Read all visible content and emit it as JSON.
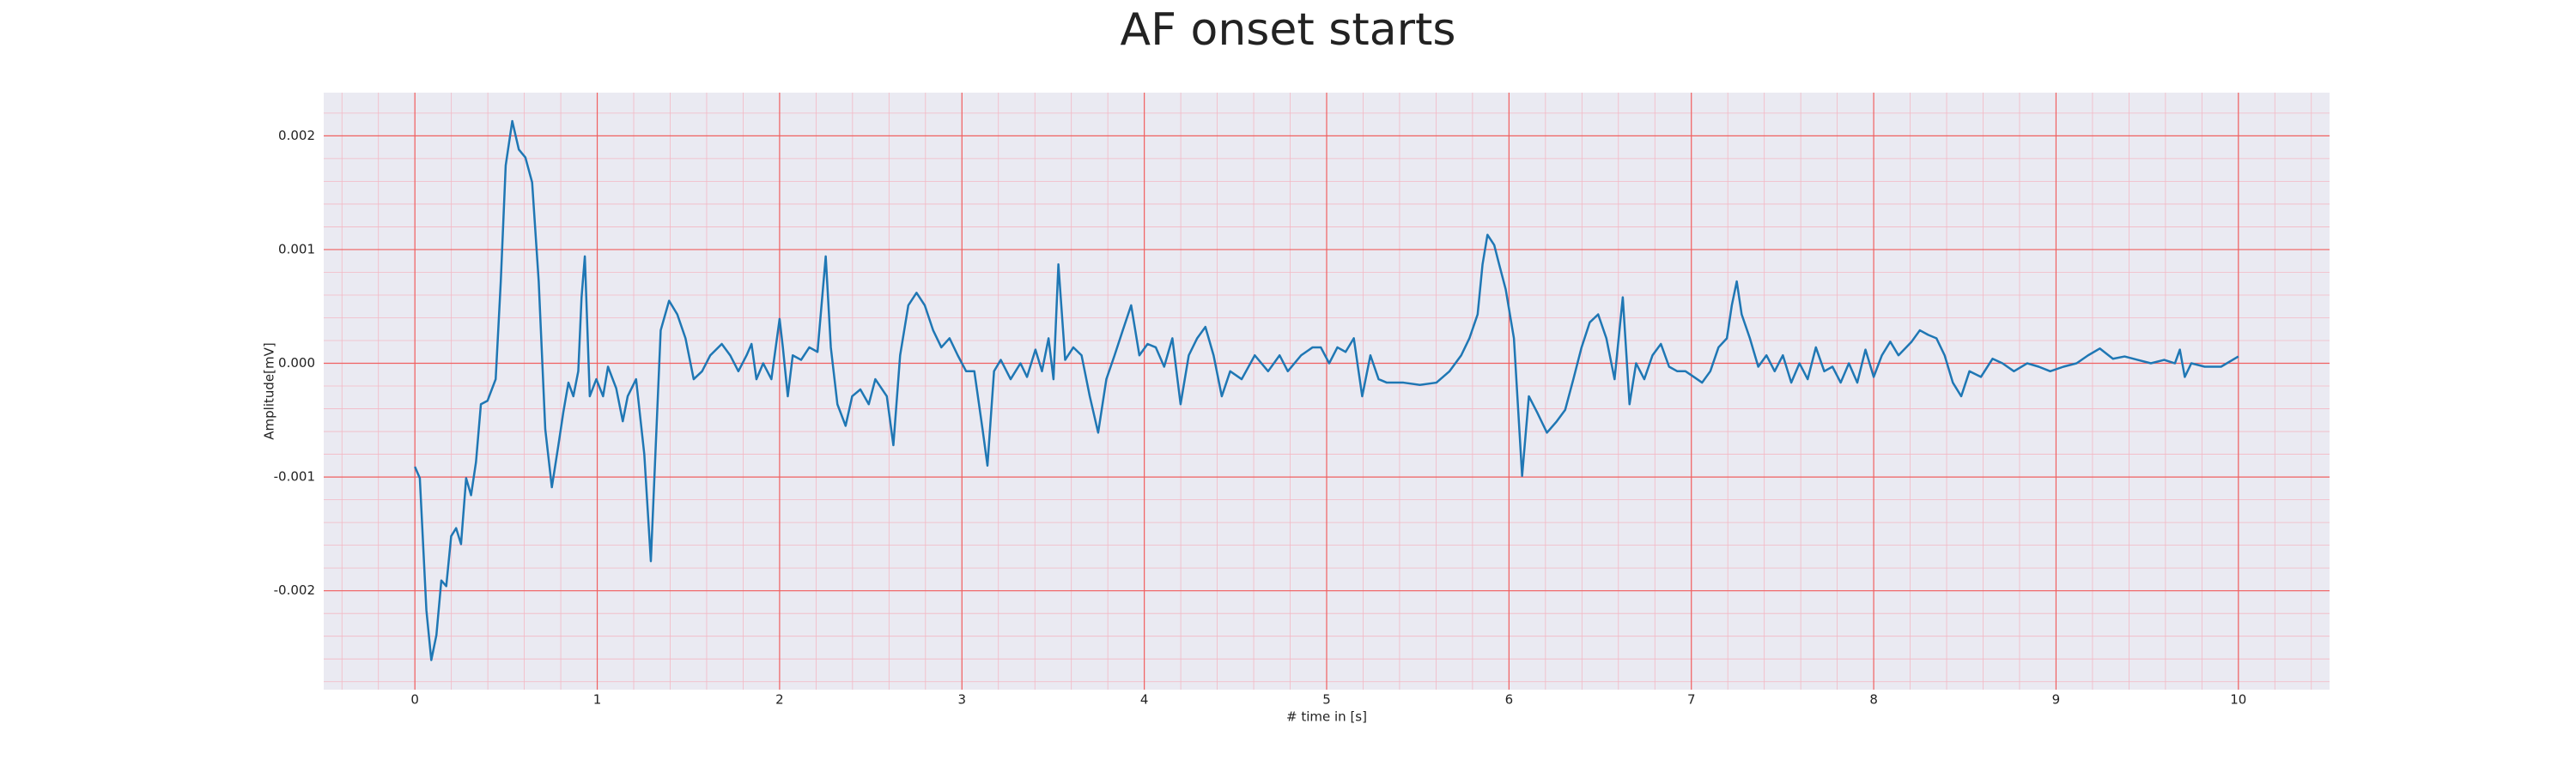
{
  "chart_data": {
    "type": "line",
    "title": "AF onset starts",
    "xlabel": "# time in [s]",
    "ylabel": "Amplitude[mV]",
    "x": [
      0,
      0.027,
      0.045,
      0.063,
      0.09,
      0.118,
      0.145,
      0.172,
      0.199,
      0.226,
      0.253,
      0.281,
      0.308,
      0.335,
      0.362,
      0.398,
      0.443,
      0.471,
      0.498,
      0.534,
      0.57,
      0.606,
      0.643,
      0.679,
      0.715,
      0.751,
      0.787,
      0.814,
      0.842,
      0.869,
      0.896,
      0.914,
      0.932,
      0.959,
      0.995,
      1.032,
      1.059,
      1.104,
      1.14,
      1.167,
      1.213,
      1.258,
      1.294,
      1.321,
      1.348,
      1.394,
      1.439,
      1.484,
      1.529,
      1.575,
      1.62,
      1.683,
      1.729,
      1.774,
      1.819,
      1.846,
      1.873,
      1.91,
      1.955,
      2.0,
      2.018,
      2.045,
      2.072,
      2.118,
      2.163,
      2.208,
      2.253,
      2.281,
      2.317,
      2.362,
      2.398,
      2.443,
      2.489,
      2.525,
      2.588,
      2.624,
      2.661,
      2.706,
      2.751,
      2.796,
      2.842,
      2.887,
      2.932,
      2.977,
      3.023,
      3.068,
      3.113,
      3.14,
      3.176,
      3.213,
      3.267,
      3.321,
      3.357,
      3.403,
      3.439,
      3.475,
      3.502,
      3.529,
      3.566,
      3.611,
      3.656,
      3.701,
      3.747,
      3.792,
      3.837,
      3.882,
      3.928,
      3.973,
      4.018,
      4.063,
      4.109,
      4.154,
      4.199,
      4.244,
      4.29,
      4.335,
      4.38,
      4.425,
      4.471,
      4.534,
      4.606,
      4.679,
      4.742,
      4.787,
      4.86,
      4.923,
      4.968,
      5.014,
      5.059,
      5.104,
      5.149,
      5.195,
      5.24,
      5.285,
      5.33,
      5.421,
      5.511,
      5.602,
      5.674,
      5.738,
      5.783,
      5.828,
      5.855,
      5.882,
      5.919,
      5.946,
      5.982,
      6.027,
      6.072,
      6.109,
      6.154,
      6.208,
      6.262,
      6.308,
      6.353,
      6.398,
      6.443,
      6.489,
      6.534,
      6.579,
      6.624,
      6.661,
      6.697,
      6.742,
      6.787,
      6.833,
      6.878,
      6.923,
      6.968,
      7.014,
      7.059,
      7.104,
      7.149,
      7.195,
      7.222,
      7.249,
      7.276,
      7.321,
      7.367,
      7.412,
      7.457,
      7.502,
      7.548,
      7.593,
      7.638,
      7.683,
      7.729,
      7.774,
      7.819,
      7.864,
      7.91,
      7.955,
      8.0,
      8.045,
      8.091,
      8.136,
      8.208,
      8.253,
      8.299,
      8.344,
      8.389,
      8.434,
      8.48,
      8.525,
      8.588,
      8.652,
      8.706,
      8.769,
      8.842,
      8.905,
      8.968,
      9.041,
      9.113,
      9.176,
      9.24,
      9.312,
      9.376,
      9.448,
      9.52,
      9.593,
      9.652,
      9.679,
      9.706,
      9.742,
      9.815,
      9.905,
      10.0
    ],
    "values": [
      -0.00091,
      -0.00101,
      -0.00159,
      -0.00217,
      -0.00261,
      -0.00239,
      -0.00191,
      -0.00196,
      -0.00152,
      -0.00145,
      -0.00159,
      -0.00101,
      -0.00116,
      -0.00087,
      -0.00036,
      -0.00033,
      -0.00014,
      0.00072,
      0.00174,
      0.00213,
      0.00188,
      0.00181,
      0.00159,
      0.00072,
      -0.00058,
      -0.00109,
      -0.00072,
      -0.00043,
      -0.00017,
      -0.00029,
      -7e-05,
      0.00058,
      0.00094,
      -0.00029,
      -0.00014,
      -0.00029,
      -3e-05,
      -0.00022,
      -0.00051,
      -0.00029,
      -0.00014,
      -0.0008,
      -0.00174,
      -0.00072,
      0.00029,
      0.00055,
      0.00043,
      0.00022,
      -0.00014,
      -7e-05,
      7e-05,
      0.00017,
      7e-05,
      -7e-05,
      7e-05,
      0.00017,
      -0.00014,
      0,
      -0.00014,
      0.00039,
      0.00014,
      -0.00029,
      7e-05,
      3e-05,
      0.00014,
      0.0001,
      0.00094,
      0.00014,
      -0.00036,
      -0.00055,
      -0.00029,
      -0.00023,
      -0.00036,
      -0.00014,
      -0.00029,
      -0.00072,
      7e-05,
      0.00051,
      0.00062,
      0.00051,
      0.00029,
      0.00014,
      0.00022,
      7e-05,
      -7e-05,
      -7e-05,
      -0.00058,
      -0.0009,
      -7e-05,
      3e-05,
      -0.00014,
      0,
      -0.00012,
      0.00012,
      -7e-05,
      0.00022,
      -0.00014,
      0.00087,
      3e-05,
      0.00014,
      7e-05,
      -0.00029,
      -0.00061,
      -0.00014,
      7e-05,
      0.00029,
      0.00051,
      7e-05,
      0.00017,
      0.00014,
      -3e-05,
      0.00022,
      -0.00036,
      7e-05,
      0.00022,
      0.00032,
      7e-05,
      -0.00029,
      -7e-05,
      -0.00014,
      7e-05,
      -7e-05,
      7e-05,
      -7e-05,
      7e-05,
      0.00014,
      0.00014,
      0,
      0.00014,
      0.0001,
      0.00022,
      -0.00029,
      7e-05,
      -0.00014,
      -0.00017,
      -0.00017,
      -0.00019,
      -0.00017,
      -7e-05,
      7e-05,
      0.00022,
      0.00043,
      0.00087,
      0.00113,
      0.00104,
      0.00087,
      0.00065,
      0.00022,
      -0.00099,
      -0.00029,
      -0.00043,
      -0.00061,
      -0.00051,
      -0.00041,
      -0.00014,
      0.00014,
      0.00036,
      0.00043,
      0.00022,
      -0.00014,
      0.00058,
      -0.00036,
      0,
      -0.00014,
      7e-05,
      0.00017,
      -3e-05,
      -7e-05,
      -7e-05,
      -0.00012,
      -0.00017,
      -7e-05,
      0.00014,
      0.00022,
      0.00051,
      0.00072,
      0.00043,
      0.00022,
      -3e-05,
      7e-05,
      -7e-05,
      7e-05,
      -0.00017,
      0,
      -0.00014,
      0.00014,
      -7e-05,
      -3e-05,
      -0.00017,
      0,
      -0.00017,
      0.00012,
      -0.00012,
      7e-05,
      0.00019,
      7e-05,
      0.00019,
      0.00029,
      0.00025,
      0.00022,
      7e-05,
      -0.00017,
      -0.00029,
      -7e-05,
      -0.00012,
      4e-05,
      0,
      -7e-05,
      0,
      -3e-05,
      -7e-05,
      -3e-05,
      0,
      7e-05,
      0.00013,
      4e-05,
      6e-05,
      3e-05,
      0,
      3e-05,
      0,
      0.00012,
      -0.00012,
      0,
      -3e-05,
      -3e-05,
      6e-05
    ],
    "color": "#1f77b4",
    "xlim": [
      -0.5,
      10.5
    ],
    "xticks": [
      0,
      1,
      2,
      3,
      4,
      5,
      6,
      7,
      8,
      9,
      10
    ],
    "ylim": [
      -0.00287,
      0.00238
    ],
    "yticks": [
      -0.002,
      -0.001,
      {
        "value": 0,
        "label": "0.000"
      },
      0.001,
      0.002
    ],
    "grid": true,
    "minor_grid": true
  }
}
